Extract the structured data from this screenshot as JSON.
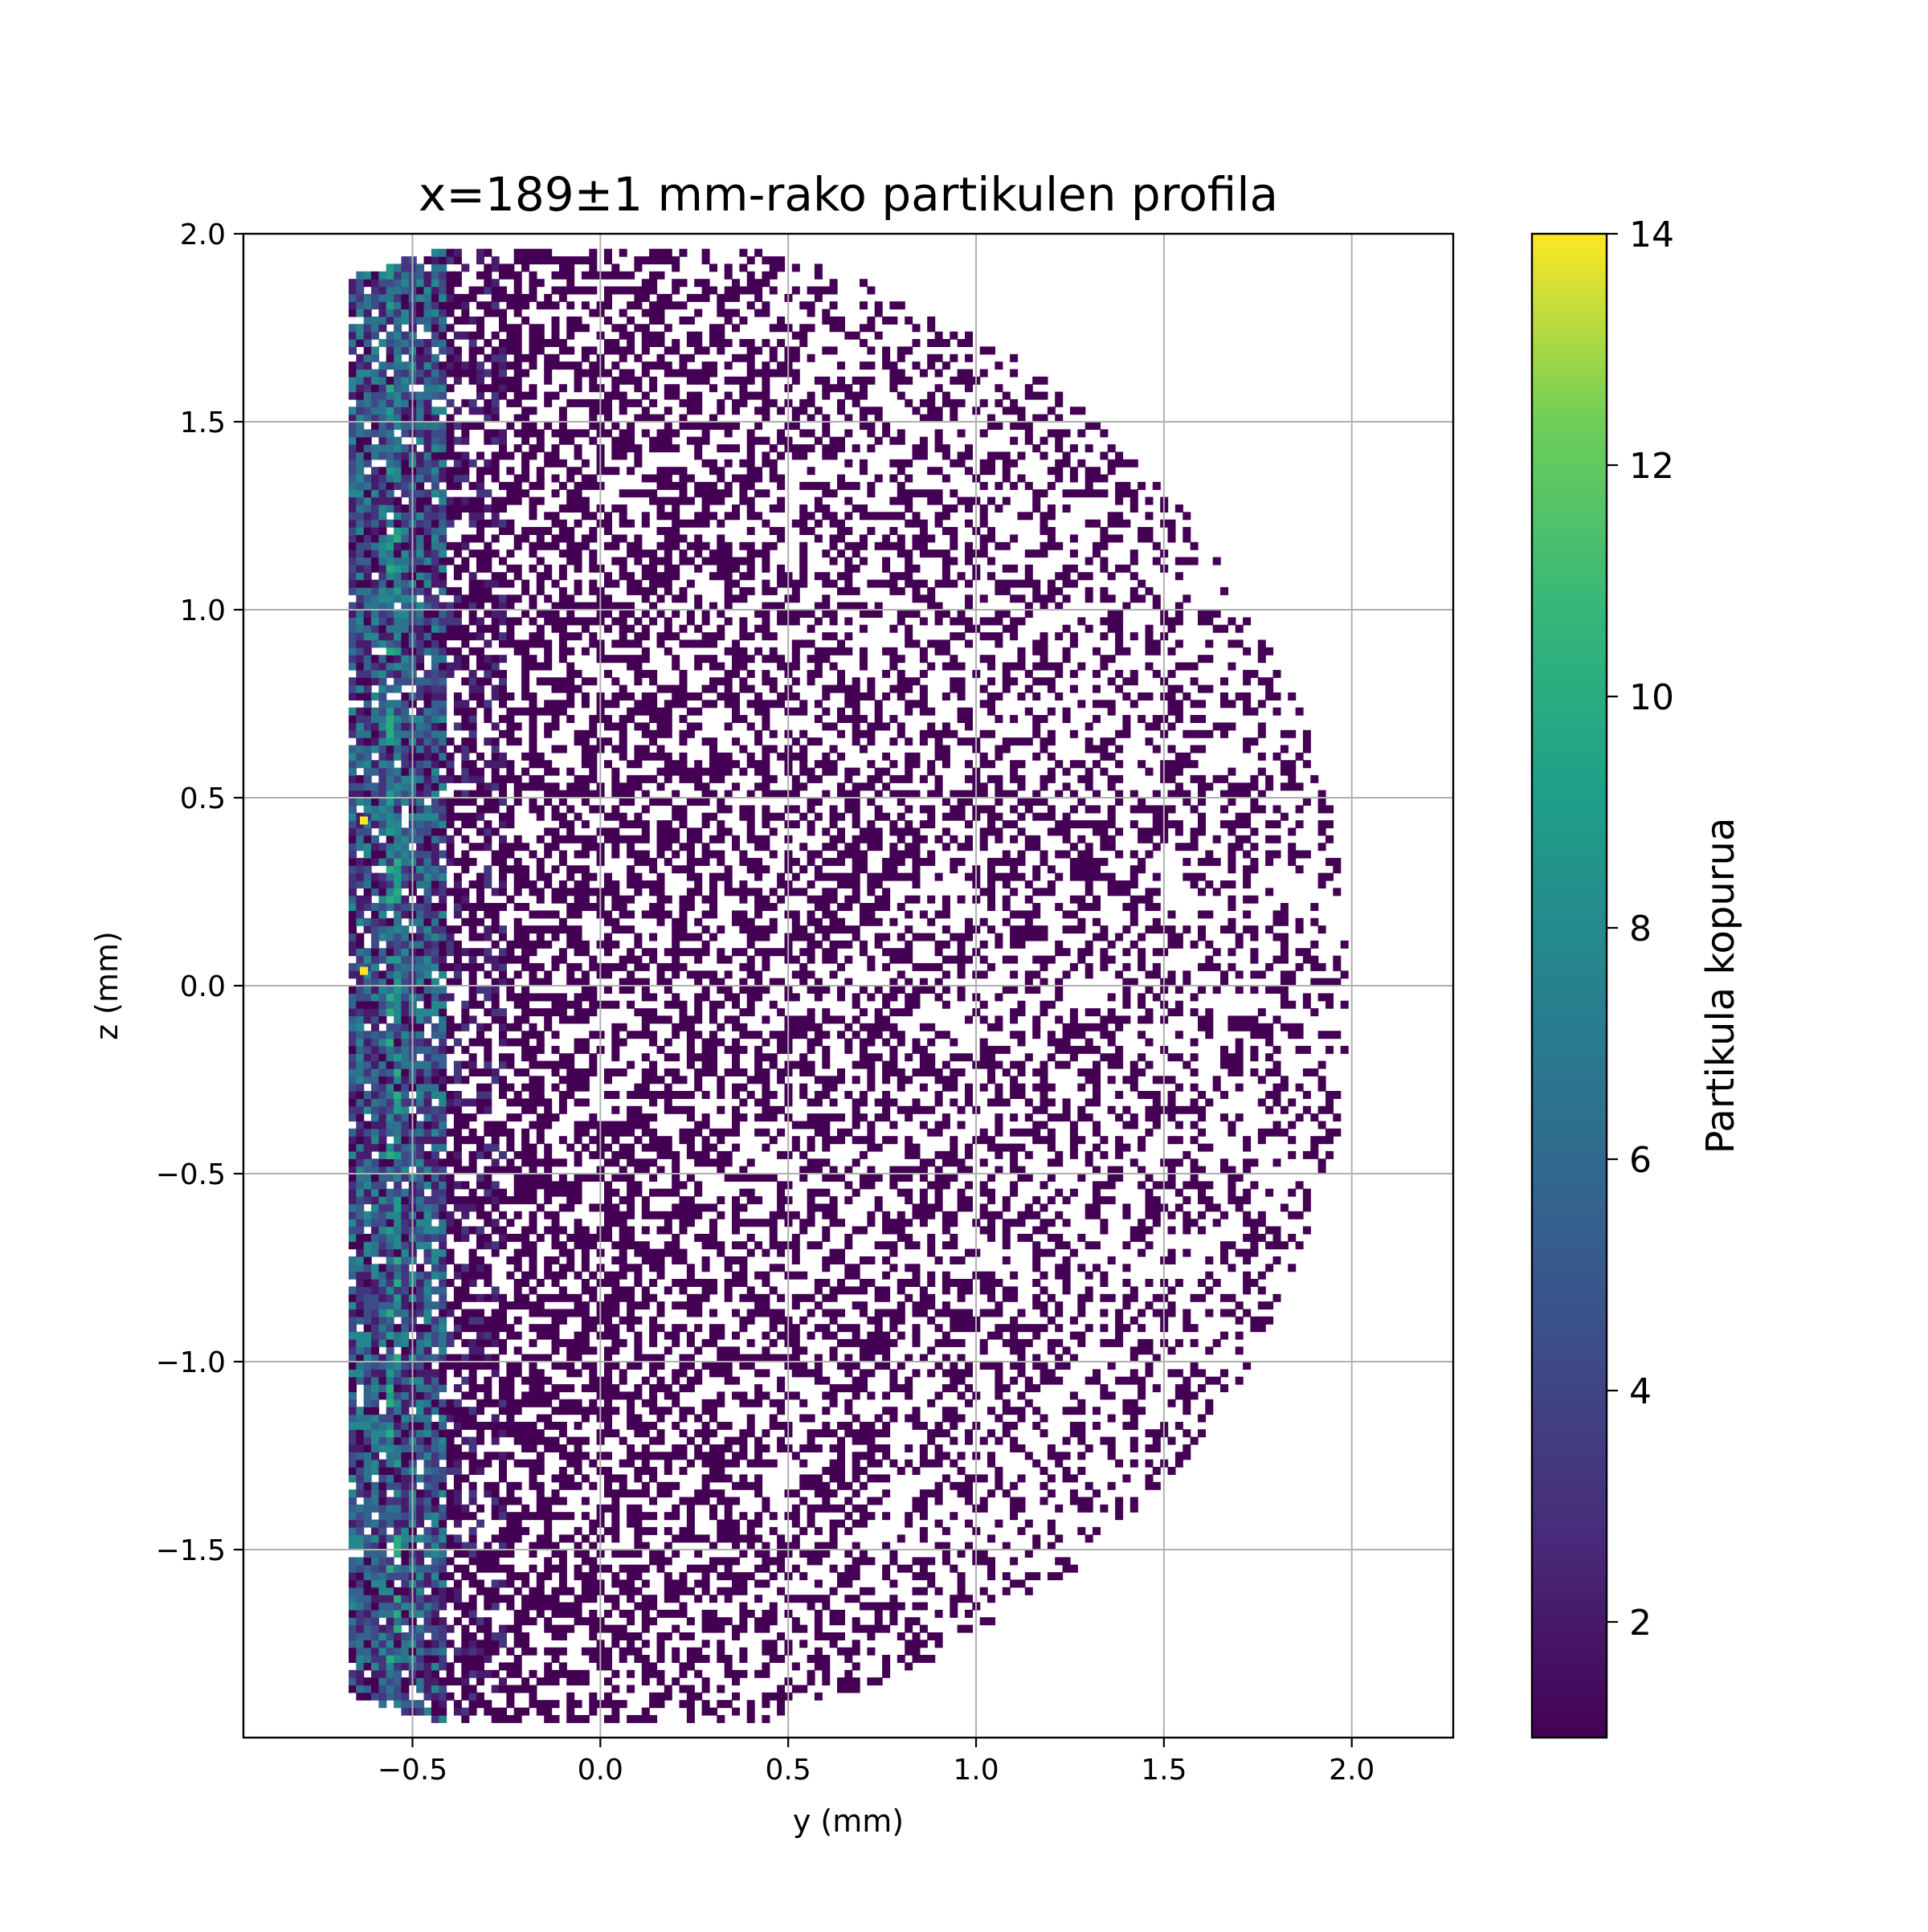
{
  "chart_data": {
    "type": "heatmap",
    "title": "x=189±1 mm-rako partikulen profila",
    "xlabel": "y (mm)",
    "ylabel": "z (mm)",
    "xlim": [
      -0.95,
      2.27
    ],
    "ylim": [
      -2.0,
      2.0
    ],
    "x_ticks": [
      -0.5,
      0.0,
      0.5,
      1.0,
      1.5,
      2.0
    ],
    "x_tick_labels": [
      "−0.5",
      "0.0",
      "0.5",
      "1.0",
      "1.5",
      "2.0"
    ],
    "y_ticks": [
      2.0,
      1.5,
      1.0,
      0.5,
      0.0,
      -0.5,
      -1.0,
      -1.5
    ],
    "y_tick_labels": [
      "2.0",
      "1.5",
      "1.0",
      "0.5",
      "0.0",
      "−0.5",
      "−1.0",
      "−1.5"
    ],
    "grid": true,
    "colormap": "viridis",
    "colorbar": {
      "label": "Partikula kopurua",
      "range": [
        1,
        14
      ],
      "ticks": [
        2,
        4,
        6,
        8,
        10,
        12,
        14
      ],
      "tick_labels": [
        "2",
        "4",
        "6",
        "8",
        "10",
        "12",
        "14"
      ]
    },
    "bins": {
      "y_min": -0.67,
      "y_max": 2.0,
      "z_min": -1.96,
      "z_max": 1.96,
      "bin_width": 0.02
    },
    "distribution": {
      "shape": "half-disk of radius 2.0 mm centred at y=0, z=0, truncated at y≈-0.67",
      "high_density_strip": [
        -0.67,
        -0.4
      ],
      "peak_value": 14,
      "peak_locations": [
        [
          -0.64,
          0.43
        ],
        [
          -0.64,
          0.03
        ]
      ]
    }
  }
}
